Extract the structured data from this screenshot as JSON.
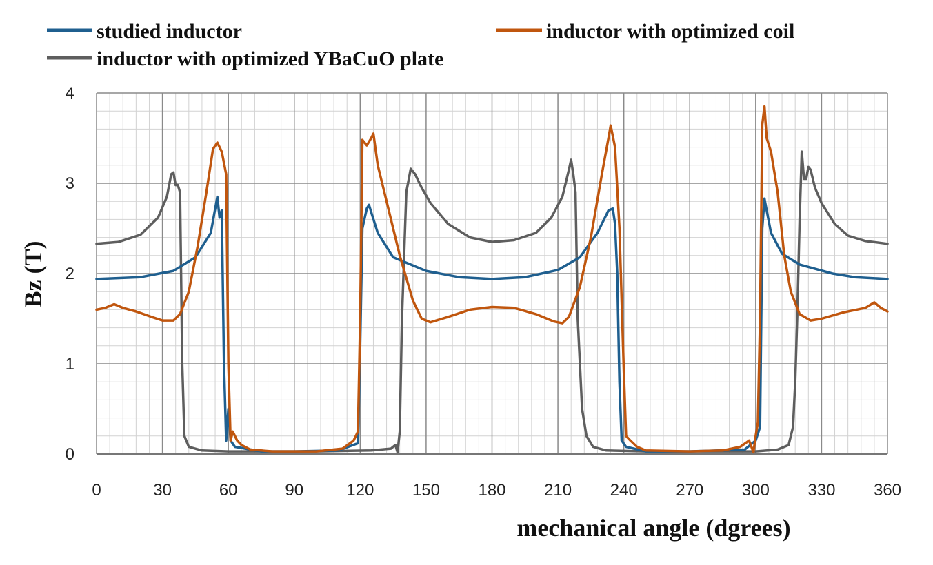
{
  "chart_data": {
    "type": "line",
    "xlabel": "mechanical angle (dgrees)",
    "ylabel": "Bz (T)",
    "xlim": [
      0,
      360
    ],
    "ylim": [
      0,
      4
    ],
    "xticks": [
      "0",
      "30",
      "60",
      "90",
      "120",
      "150",
      "180",
      "210",
      "240",
      "270",
      "300",
      "330",
      "360"
    ],
    "yticks": [
      "0",
      "1",
      "2",
      "3",
      "4"
    ],
    "grid": true,
    "minor_grid": true,
    "legend_position": "top",
    "series": [
      {
        "name": "studied inductor",
        "color": "#1f5f8f",
        "points": [
          [
            0,
            1.94
          ],
          [
            20,
            1.96
          ],
          [
            35,
            2.03
          ],
          [
            45,
            2.18
          ],
          [
            52,
            2.45
          ],
          [
            55,
            2.85
          ],
          [
            56,
            2.62
          ],
          [
            57,
            2.7
          ],
          [
            58,
            1.0
          ],
          [
            59,
            0.15
          ],
          [
            60,
            0.5
          ],
          [
            61,
            0.15
          ],
          [
            63,
            0.08
          ],
          [
            75,
            0.03
          ],
          [
            90,
            0.03
          ],
          [
            110,
            0.04
          ],
          [
            119,
            0.12
          ],
          [
            120,
            1.2
          ],
          [
            121,
            2.5
          ],
          [
            123,
            2.72
          ],
          [
            124,
            2.76
          ],
          [
            125,
            2.68
          ],
          [
            128,
            2.45
          ],
          [
            135,
            2.18
          ],
          [
            150,
            2.03
          ],
          [
            165,
            1.96
          ],
          [
            180,
            1.94
          ],
          [
            195,
            1.96
          ],
          [
            210,
            2.04
          ],
          [
            220,
            2.18
          ],
          [
            228,
            2.45
          ],
          [
            233,
            2.7
          ],
          [
            235,
            2.72
          ],
          [
            236,
            2.55
          ],
          [
            237,
            2.0
          ],
          [
            238,
            0.8
          ],
          [
            239,
            0.15
          ],
          [
            241,
            0.08
          ],
          [
            250,
            0.03
          ],
          [
            270,
            0.03
          ],
          [
            295,
            0.05
          ],
          [
            300,
            0.15
          ],
          [
            302,
            0.3
          ],
          [
            303,
            2.5
          ],
          [
            304,
            2.83
          ],
          [
            305,
            2.7
          ],
          [
            307,
            2.45
          ],
          [
            312,
            2.22
          ],
          [
            320,
            2.1
          ],
          [
            335,
            2.0
          ],
          [
            345,
            1.96
          ],
          [
            360,
            1.94
          ]
        ]
      },
      {
        "name": "inductor with optimized coil",
        "color": "#c0560e",
        "points": [
          [
            0,
            1.6
          ],
          [
            4,
            1.62
          ],
          [
            8,
            1.66
          ],
          [
            12,
            1.62
          ],
          [
            18,
            1.58
          ],
          [
            25,
            1.52
          ],
          [
            30,
            1.48
          ],
          [
            35,
            1.48
          ],
          [
            38,
            1.55
          ],
          [
            42,
            1.8
          ],
          [
            46,
            2.3
          ],
          [
            50,
            2.9
          ],
          [
            53,
            3.38
          ],
          [
            55,
            3.45
          ],
          [
            57,
            3.35
          ],
          [
            59,
            3.1
          ],
          [
            60,
            1.0
          ],
          [
            61,
            0.15
          ],
          [
            62,
            0.25
          ],
          [
            64,
            0.15
          ],
          [
            66,
            0.1
          ],
          [
            70,
            0.05
          ],
          [
            80,
            0.03
          ],
          [
            100,
            0.03
          ],
          [
            112,
            0.06
          ],
          [
            117,
            0.15
          ],
          [
            119,
            0.25
          ],
          [
            120,
            1.5
          ],
          [
            121,
            3.48
          ],
          [
            123,
            3.42
          ],
          [
            125,
            3.5
          ],
          [
            126,
            3.55
          ],
          [
            128,
            3.2
          ],
          [
            132,
            2.8
          ],
          [
            138,
            2.2
          ],
          [
            144,
            1.7
          ],
          [
            148,
            1.5
          ],
          [
            152,
            1.46
          ],
          [
            160,
            1.52
          ],
          [
            170,
            1.6
          ],
          [
            180,
            1.63
          ],
          [
            190,
            1.62
          ],
          [
            200,
            1.55
          ],
          [
            208,
            1.47
          ],
          [
            212,
            1.45
          ],
          [
            215,
            1.52
          ],
          [
            220,
            1.85
          ],
          [
            225,
            2.4
          ],
          [
            230,
            3.1
          ],
          [
            233,
            3.5
          ],
          [
            234,
            3.64
          ],
          [
            236,
            3.4
          ],
          [
            238,
            2.5
          ],
          [
            240,
            0.9
          ],
          [
            241,
            0.2
          ],
          [
            243,
            0.15
          ],
          [
            246,
            0.08
          ],
          [
            250,
            0.04
          ],
          [
            270,
            0.03
          ],
          [
            285,
            0.04
          ],
          [
            293,
            0.08
          ],
          [
            297,
            0.15
          ],
          [
            299,
            0.02
          ],
          [
            300,
            0.2
          ],
          [
            301,
            0.35
          ],
          [
            302,
            1.5
          ],
          [
            303,
            3.65
          ],
          [
            304,
            3.85
          ],
          [
            305,
            3.5
          ],
          [
            307,
            3.35
          ],
          [
            310,
            2.9
          ],
          [
            313,
            2.2
          ],
          [
            316,
            1.8
          ],
          [
            320,
            1.55
          ],
          [
            325,
            1.48
          ],
          [
            330,
            1.5
          ],
          [
            340,
            1.57
          ],
          [
            350,
            1.62
          ],
          [
            354,
            1.68
          ],
          [
            357,
            1.62
          ],
          [
            360,
            1.58
          ]
        ]
      },
      {
        "name": "inductor with optimized YBaCuO plate",
        "color": "#5e5e5e",
        "points": [
          [
            0,
            2.33
          ],
          [
            10,
            2.35
          ],
          [
            20,
            2.43
          ],
          [
            28,
            2.62
          ],
          [
            32,
            2.85
          ],
          [
            34,
            3.1
          ],
          [
            35,
            3.12
          ],
          [
            36,
            2.98
          ],
          [
            37,
            2.98
          ],
          [
            38,
            2.9
          ],
          [
            39,
            1.0
          ],
          [
            40,
            0.2
          ],
          [
            42,
            0.08
          ],
          [
            48,
            0.04
          ],
          [
            60,
            0.03
          ],
          [
            100,
            0.03
          ],
          [
            125,
            0.04
          ],
          [
            134,
            0.06
          ],
          [
            136,
            0.1
          ],
          [
            137,
            0.02
          ],
          [
            138,
            0.25
          ],
          [
            139,
            1.5
          ],
          [
            141,
            2.9
          ],
          [
            143,
            3.16
          ],
          [
            145,
            3.1
          ],
          [
            148,
            2.95
          ],
          [
            152,
            2.78
          ],
          [
            160,
            2.55
          ],
          [
            170,
            2.4
          ],
          [
            180,
            2.35
          ],
          [
            190,
            2.37
          ],
          [
            200,
            2.45
          ],
          [
            207,
            2.62
          ],
          [
            212,
            2.85
          ],
          [
            215,
            3.15
          ],
          [
            216,
            3.26
          ],
          [
            217,
            3.1
          ],
          [
            218,
            2.9
          ],
          [
            219,
            1.5
          ],
          [
            221,
            0.5
          ],
          [
            223,
            0.2
          ],
          [
            226,
            0.08
          ],
          [
            232,
            0.04
          ],
          [
            250,
            0.03
          ],
          [
            300,
            0.03
          ],
          [
            310,
            0.05
          ],
          [
            315,
            0.1
          ],
          [
            317,
            0.3
          ],
          [
            318,
            0.8
          ],
          [
            319,
            1.6
          ],
          [
            320,
            2.6
          ],
          [
            321,
            3.35
          ],
          [
            322,
            3.05
          ],
          [
            323,
            3.05
          ],
          [
            324,
            3.18
          ],
          [
            325,
            3.15
          ],
          [
            327,
            2.95
          ],
          [
            330,
            2.78
          ],
          [
            336,
            2.55
          ],
          [
            342,
            2.42
          ],
          [
            350,
            2.36
          ],
          [
            360,
            2.33
          ]
        ]
      }
    ]
  }
}
